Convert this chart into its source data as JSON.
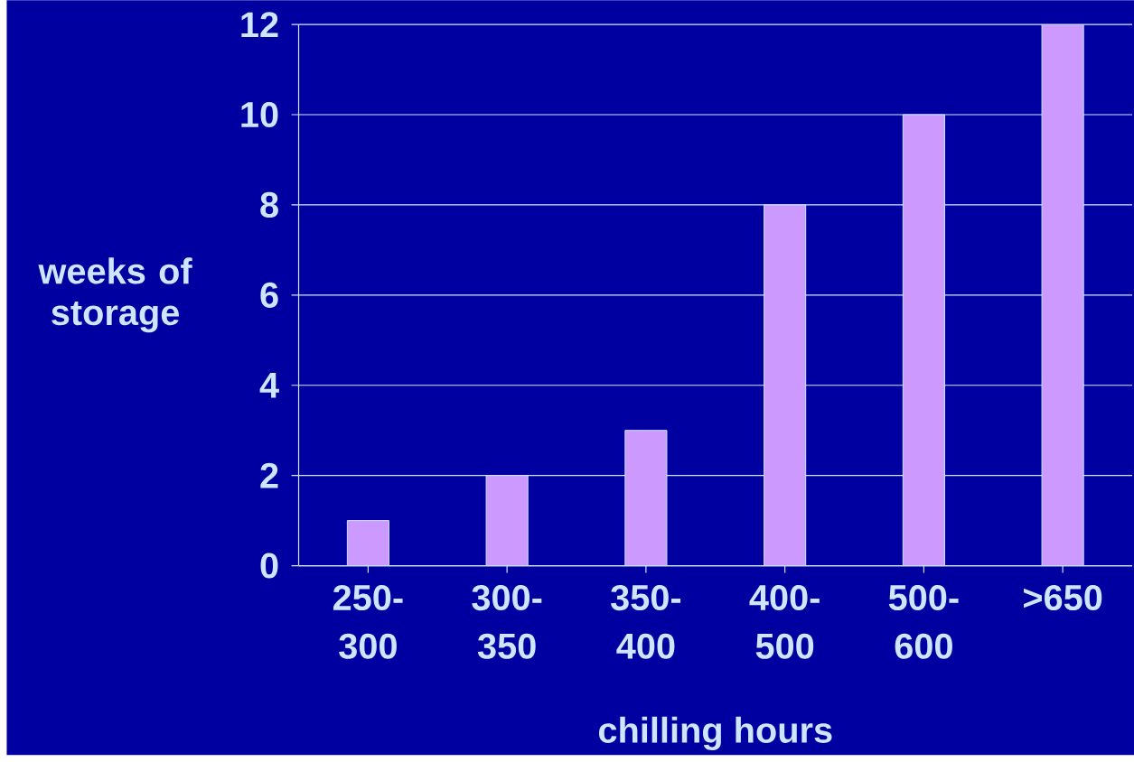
{
  "chart_data": {
    "type": "bar",
    "xlabel": "chilling hours",
    "ylabel": "weeks of storage",
    "categories": [
      "250-300",
      "300-350",
      "350-400",
      "400-500",
      "500-600",
      ">650"
    ],
    "values": [
      1,
      2,
      3,
      8,
      10,
      12
    ],
    "color": "#cc99ff",
    "ylim": [
      0,
      12
    ],
    "yticks": [
      0,
      2,
      4,
      6,
      8,
      10,
      12
    ],
    "grid": "y"
  }
}
